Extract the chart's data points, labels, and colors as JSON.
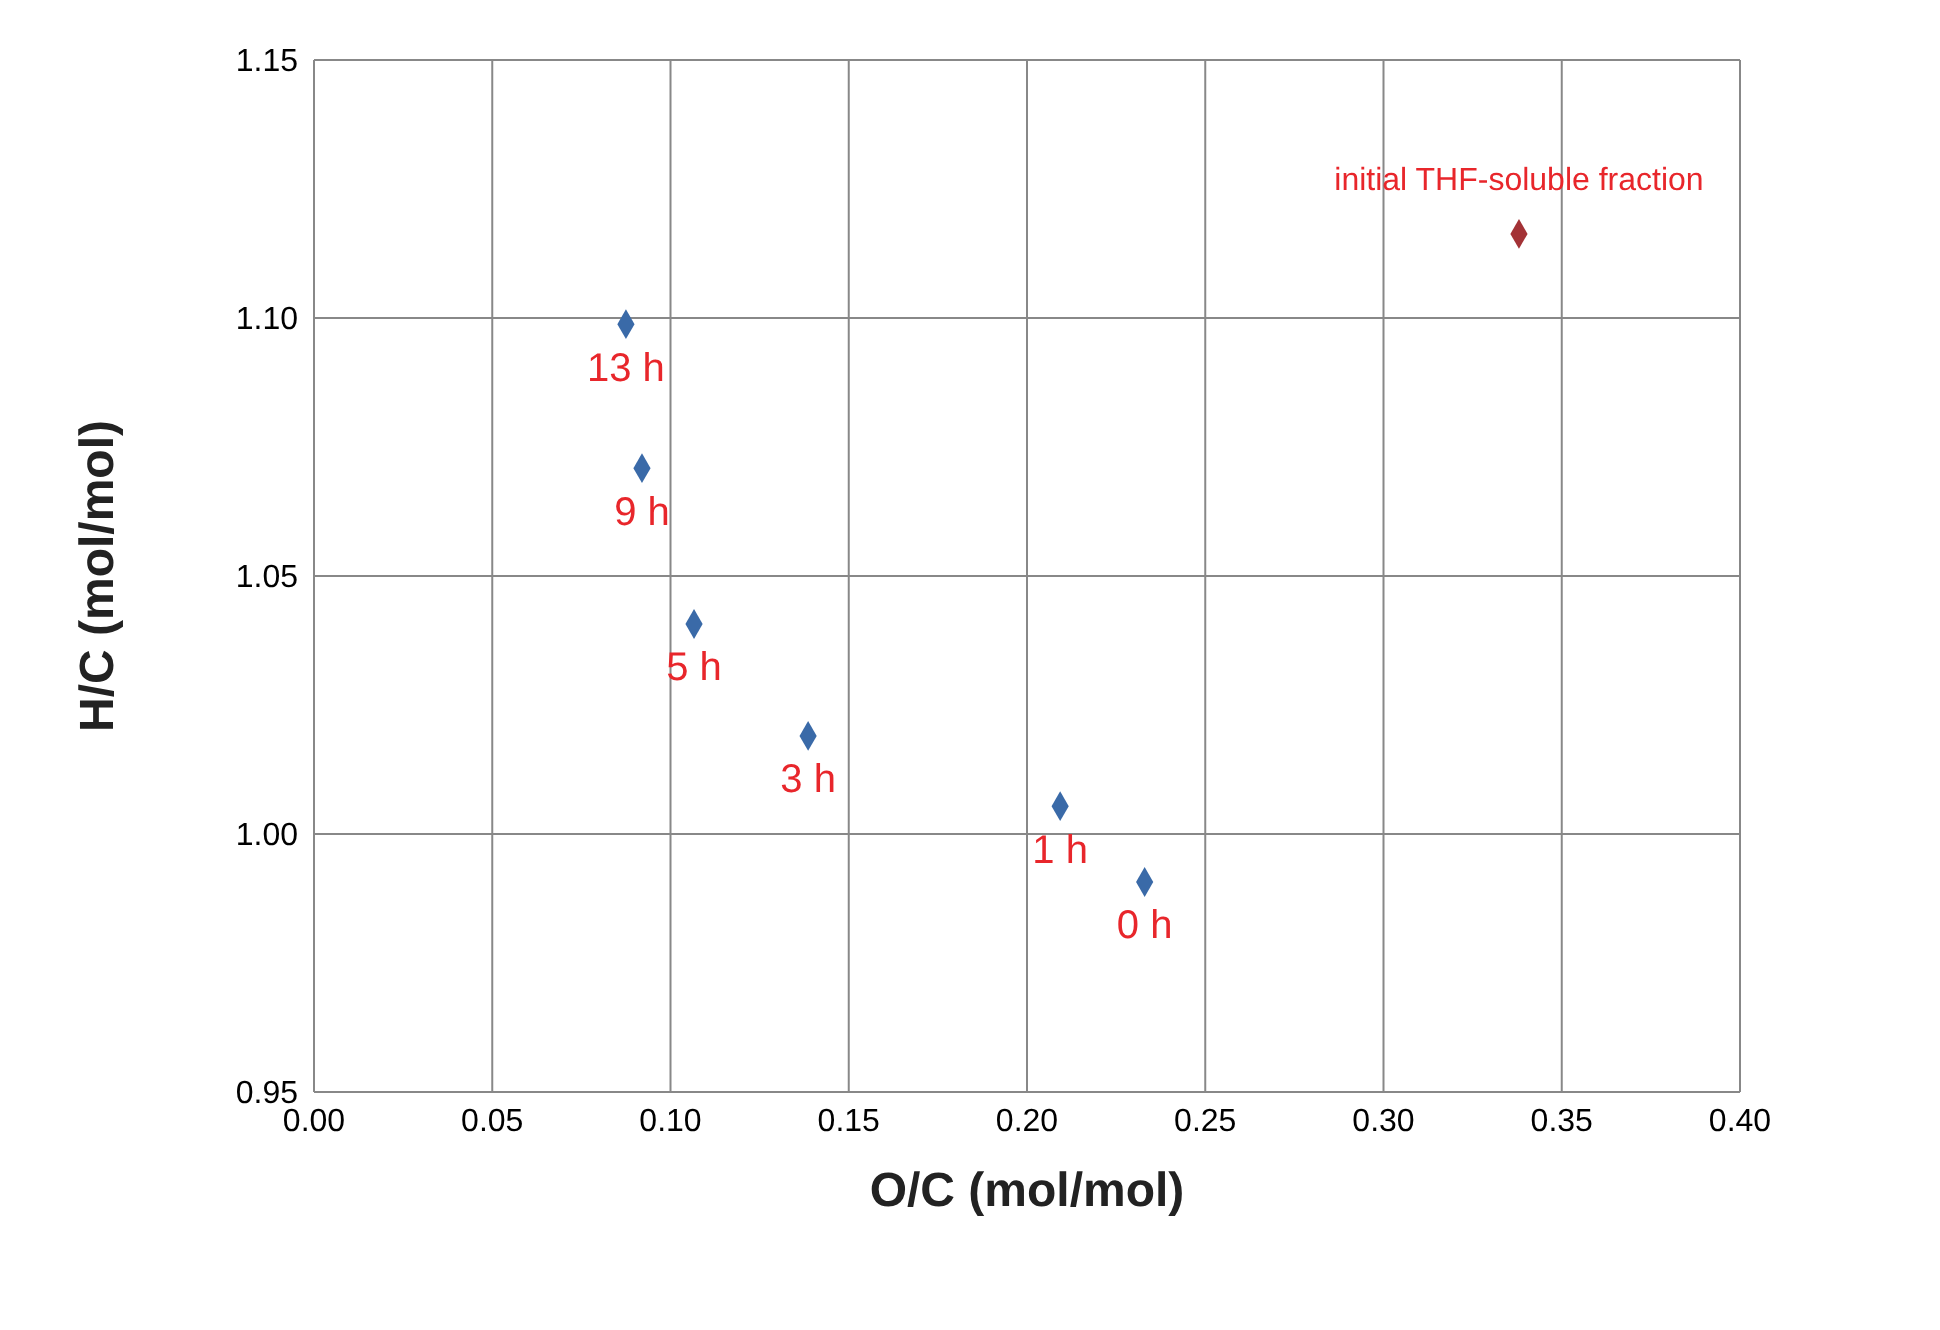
{
  "chart_data": {
    "type": "scatter",
    "xlabel": "O/C (mol/mol)",
    "ylabel": "H/C (mol/mol)",
    "series": [
      {
        "color": "#3a6aa8",
        "x": [
          0.0875,
          0.092,
          0.1066,
          0.1386,
          0.2093,
          0.233
        ],
        "values": [
          1.0988,
          1.0709,
          1.0407,
          1.019,
          1.0054,
          0.9907
        ]
      },
      {
        "color": "#a33236",
        "x": [
          0.338
        ],
        "values": [
          1.1163
        ]
      }
    ],
    "annotations": [
      {
        "text": "13 h",
        "x": 0.0875,
        "y": 1.0988
      },
      {
        "text": "9 h",
        "x": 0.092,
        "y": 1.0709
      },
      {
        "text": "5 h",
        "x": 0.1066,
        "y": 1.0407
      },
      {
        "text": "3 h",
        "x": 0.1386,
        "y": 1.019
      },
      {
        "text": "1 h",
        "x": 0.2093,
        "y": 1.0054
      },
      {
        "text": "0 h",
        "x": 0.233,
        "y": 0.9907
      },
      {
        "text": "initial THF-soluble fraction",
        "x": 0.338,
        "y": 1.1163
      }
    ],
    "xlim": [
      0,
      0.4
    ],
    "xticks": [
      {
        "value": 0,
        "label": "0.00"
      },
      {
        "value": 0.05,
        "label": "0.05"
      },
      {
        "value": 0.1,
        "label": "0.10"
      },
      {
        "value": 0.15,
        "label": "0.15"
      },
      {
        "value": 0.2,
        "label": "0.20"
      },
      {
        "value": 0.25,
        "label": "0.25"
      },
      {
        "value": 0.3,
        "label": "0.30"
      },
      {
        "value": 0.35,
        "label": "0.35"
      },
      {
        "value": 0.4,
        "label": "0.40"
      }
    ],
    "ylim": [
      0.95,
      1.15
    ],
    "yticks": [
      {
        "value": 0.95,
        "label": "0.95"
      },
      {
        "value": 1,
        "label": "1.00"
      },
      {
        "value": 1.05,
        "label": "1.05"
      },
      {
        "value": 1.1,
        "label": "1.10"
      },
      {
        "value": 1.15,
        "label": "1.15"
      }
    ],
    "grid": true,
    "legend": false,
    "marker": "diamond"
  }
}
